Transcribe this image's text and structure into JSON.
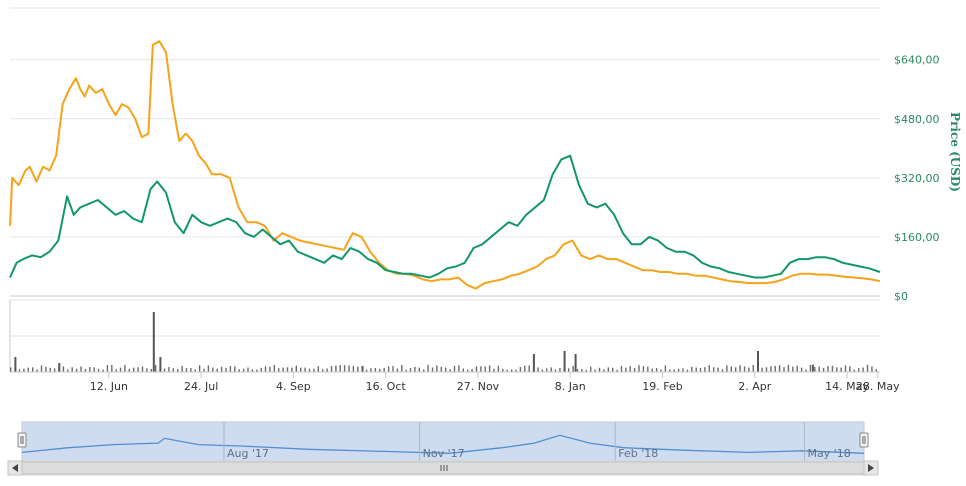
{
  "chart_data": {
    "type": "line",
    "ylabel": "Price (USD)",
    "y_ticks": [
      "$0",
      "$160,00",
      "$320,00",
      "$480,00",
      "$640,00"
    ],
    "y_tick_values": [
      0,
      160,
      320,
      480,
      640
    ],
    "ylim": [
      0,
      780
    ],
    "x_tick_labels": [
      "12. Jun",
      "24. Jul",
      "4. Sep",
      "16. Oct",
      "27. Nov",
      "8. Jan",
      "19. Feb",
      "2. Apr",
      "14. May",
      "28. May"
    ],
    "x_tick_dates": [
      "2017-06-12",
      "2017-07-24",
      "2017-09-04",
      "2017-10-16",
      "2017-11-27",
      "2018-01-08",
      "2018-02-19",
      "2018-04-02",
      "2018-05-14",
      "2018-05-28"
    ],
    "x_range": [
      "2017-04-28",
      "2018-05-29"
    ],
    "navigator_labels": [
      "Aug '17",
      "Nov '17",
      "Feb '18",
      "May '18"
    ],
    "navigator_label_dates": [
      "2017-08-01",
      "2017-11-01",
      "2018-02-01",
      "2018-05-01"
    ],
    "grid": true,
    "legend": "none",
    "series": [
      {
        "color": "#f5a31a",
        "points": [
          [
            "2017-04-28",
            190
          ],
          [
            "2017-04-29",
            320
          ],
          [
            "2017-05-02",
            300
          ],
          [
            "2017-05-05",
            340
          ],
          [
            "2017-05-07",
            350
          ],
          [
            "2017-05-10",
            310
          ],
          [
            "2017-05-13",
            350
          ],
          [
            "2017-05-16",
            340
          ],
          [
            "2017-05-19",
            380
          ],
          [
            "2017-05-22",
            520
          ],
          [
            "2017-05-25",
            560
          ],
          [
            "2017-05-28",
            590
          ],
          [
            "2017-05-30",
            560
          ],
          [
            "2017-06-01",
            540
          ],
          [
            "2017-06-03",
            570
          ],
          [
            "2017-06-06",
            550
          ],
          [
            "2017-06-09",
            560
          ],
          [
            "2017-06-12",
            520
          ],
          [
            "2017-06-15",
            490
          ],
          [
            "2017-06-18",
            520
          ],
          [
            "2017-06-21",
            510
          ],
          [
            "2017-06-24",
            480
          ],
          [
            "2017-06-27",
            430
          ],
          [
            "2017-06-30",
            440
          ],
          [
            "2017-07-02",
            680
          ],
          [
            "2017-07-05",
            690
          ],
          [
            "2017-07-08",
            660
          ],
          [
            "2017-07-11",
            520
          ],
          [
            "2017-07-14",
            420
          ],
          [
            "2017-07-17",
            440
          ],
          [
            "2017-07-20",
            420
          ],
          [
            "2017-07-23",
            380
          ],
          [
            "2017-07-26",
            360
          ],
          [
            "2017-07-29",
            330
          ],
          [
            "2017-08-02",
            330
          ],
          [
            "2017-08-06",
            320
          ],
          [
            "2017-08-10",
            240
          ],
          [
            "2017-08-14",
            200
          ],
          [
            "2017-08-18",
            200
          ],
          [
            "2017-08-22",
            190
          ],
          [
            "2017-08-26",
            150
          ],
          [
            "2017-08-30",
            170
          ],
          [
            "2017-09-03",
            160
          ],
          [
            "2017-09-07",
            150
          ],
          [
            "2017-09-11",
            145
          ],
          [
            "2017-09-15",
            140
          ],
          [
            "2017-09-19",
            135
          ],
          [
            "2017-09-23",
            130
          ],
          [
            "2017-09-27",
            125
          ],
          [
            "2017-10-01",
            170
          ],
          [
            "2017-10-05",
            160
          ],
          [
            "2017-10-09",
            120
          ],
          [
            "2017-10-13",
            90
          ],
          [
            "2017-10-17",
            70
          ],
          [
            "2017-10-21",
            60
          ],
          [
            "2017-10-25",
            60
          ],
          [
            "2017-10-29",
            55
          ],
          [
            "2017-11-02",
            45
          ],
          [
            "2017-11-06",
            40
          ],
          [
            "2017-11-10",
            45
          ],
          [
            "2017-11-14",
            45
          ],
          [
            "2017-11-18",
            50
          ],
          [
            "2017-11-22",
            30
          ],
          [
            "2017-11-26",
            20
          ],
          [
            "2017-11-30",
            35
          ],
          [
            "2017-12-04",
            40
          ],
          [
            "2017-12-08",
            45
          ],
          [
            "2017-12-12",
            55
          ],
          [
            "2017-12-16",
            60
          ],
          [
            "2017-12-20",
            70
          ],
          [
            "2017-12-24",
            80
          ],
          [
            "2017-12-28",
            100
          ],
          [
            "2018-01-01",
            110
          ],
          [
            "2018-01-05",
            140
          ],
          [
            "2018-01-09",
            150
          ],
          [
            "2018-01-13",
            110
          ],
          [
            "2018-01-17",
            100
          ],
          [
            "2018-01-21",
            110
          ],
          [
            "2018-01-25",
            100
          ],
          [
            "2018-01-29",
            100
          ],
          [
            "2018-02-02",
            90
          ],
          [
            "2018-02-06",
            80
          ],
          [
            "2018-02-10",
            70
          ],
          [
            "2018-02-14",
            70
          ],
          [
            "2018-02-18",
            65
          ],
          [
            "2018-02-22",
            65
          ],
          [
            "2018-02-26",
            60
          ],
          [
            "2018-03-02",
            60
          ],
          [
            "2018-03-06",
            55
          ],
          [
            "2018-03-10",
            55
          ],
          [
            "2018-03-14",
            50
          ],
          [
            "2018-03-18",
            45
          ],
          [
            "2018-03-22",
            40
          ],
          [
            "2018-03-26",
            38
          ],
          [
            "2018-03-30",
            35
          ],
          [
            "2018-04-03",
            35
          ],
          [
            "2018-04-07",
            35
          ],
          [
            "2018-04-11",
            38
          ],
          [
            "2018-04-15",
            45
          ],
          [
            "2018-04-19",
            55
          ],
          [
            "2018-04-23",
            60
          ],
          [
            "2018-04-27",
            60
          ],
          [
            "2018-05-01",
            58
          ],
          [
            "2018-05-05",
            58
          ],
          [
            "2018-05-09",
            55
          ],
          [
            "2018-05-13",
            52
          ],
          [
            "2018-05-17",
            50
          ],
          [
            "2018-05-21",
            48
          ],
          [
            "2018-05-25",
            45
          ],
          [
            "2018-05-29",
            40
          ]
        ]
      },
      {
        "color": "#14966b",
        "points": [
          [
            "2017-04-28",
            50
          ],
          [
            "2017-05-01",
            90
          ],
          [
            "2017-05-04",
            100
          ],
          [
            "2017-05-08",
            110
          ],
          [
            "2017-05-12",
            105
          ],
          [
            "2017-05-16",
            120
          ],
          [
            "2017-05-20",
            150
          ],
          [
            "2017-05-24",
            270
          ],
          [
            "2017-05-27",
            220
          ],
          [
            "2017-05-30",
            240
          ],
          [
            "2017-06-03",
            250
          ],
          [
            "2017-06-07",
            260
          ],
          [
            "2017-06-11",
            240
          ],
          [
            "2017-06-15",
            220
          ],
          [
            "2017-06-19",
            230
          ],
          [
            "2017-06-23",
            210
          ],
          [
            "2017-06-27",
            200
          ],
          [
            "2017-07-01",
            290
          ],
          [
            "2017-07-04",
            310
          ],
          [
            "2017-07-08",
            280
          ],
          [
            "2017-07-12",
            200
          ],
          [
            "2017-07-16",
            170
          ],
          [
            "2017-07-20",
            220
          ],
          [
            "2017-07-24",
            200
          ],
          [
            "2017-07-28",
            190
          ],
          [
            "2017-08-01",
            200
          ],
          [
            "2017-08-05",
            210
          ],
          [
            "2017-08-09",
            200
          ],
          [
            "2017-08-13",
            170
          ],
          [
            "2017-08-17",
            160
          ],
          [
            "2017-08-21",
            180
          ],
          [
            "2017-08-25",
            160
          ],
          [
            "2017-08-29",
            140
          ],
          [
            "2017-09-02",
            150
          ],
          [
            "2017-09-06",
            120
          ],
          [
            "2017-09-10",
            110
          ],
          [
            "2017-09-14",
            100
          ],
          [
            "2017-09-18",
            90
          ],
          [
            "2017-09-22",
            110
          ],
          [
            "2017-09-26",
            100
          ],
          [
            "2017-09-30",
            130
          ],
          [
            "2017-10-04",
            120
          ],
          [
            "2017-10-08",
            100
          ],
          [
            "2017-10-12",
            90
          ],
          [
            "2017-10-16",
            70
          ],
          [
            "2017-10-20",
            65
          ],
          [
            "2017-10-24",
            60
          ],
          [
            "2017-10-28",
            60
          ],
          [
            "2017-11-01",
            55
          ],
          [
            "2017-11-05",
            50
          ],
          [
            "2017-11-09",
            60
          ],
          [
            "2017-11-13",
            75
          ],
          [
            "2017-11-17",
            80
          ],
          [
            "2017-11-21",
            90
          ],
          [
            "2017-11-25",
            130
          ],
          [
            "2017-11-29",
            140
          ],
          [
            "2017-12-03",
            160
          ],
          [
            "2017-12-07",
            180
          ],
          [
            "2017-12-11",
            200
          ],
          [
            "2017-12-15",
            190
          ],
          [
            "2017-12-19",
            220
          ],
          [
            "2017-12-23",
            240
          ],
          [
            "2017-12-27",
            260
          ],
          [
            "2017-12-31",
            330
          ],
          [
            "2018-01-04",
            370
          ],
          [
            "2018-01-08",
            380
          ],
          [
            "2018-01-12",
            300
          ],
          [
            "2018-01-16",
            250
          ],
          [
            "2018-01-20",
            240
          ],
          [
            "2018-01-24",
            250
          ],
          [
            "2018-01-28",
            220
          ],
          [
            "2018-02-01",
            170
          ],
          [
            "2018-02-05",
            140
          ],
          [
            "2018-02-09",
            140
          ],
          [
            "2018-02-13",
            160
          ],
          [
            "2018-02-17",
            150
          ],
          [
            "2018-02-21",
            130
          ],
          [
            "2018-02-25",
            120
          ],
          [
            "2018-03-01",
            120
          ],
          [
            "2018-03-05",
            110
          ],
          [
            "2018-03-09",
            90
          ],
          [
            "2018-03-13",
            80
          ],
          [
            "2018-03-17",
            75
          ],
          [
            "2018-03-21",
            65
          ],
          [
            "2018-03-25",
            60
          ],
          [
            "2018-03-29",
            55
          ],
          [
            "2018-04-02",
            50
          ],
          [
            "2018-04-06",
            50
          ],
          [
            "2018-04-10",
            55
          ],
          [
            "2018-04-14",
            60
          ],
          [
            "2018-04-18",
            90
          ],
          [
            "2018-04-22",
            100
          ],
          [
            "2018-04-26",
            100
          ],
          [
            "2018-04-30",
            105
          ],
          [
            "2018-05-04",
            105
          ],
          [
            "2018-05-08",
            100
          ],
          [
            "2018-05-12",
            90
          ],
          [
            "2018-05-16",
            85
          ],
          [
            "2018-05-20",
            80
          ],
          [
            "2018-05-24",
            75
          ],
          [
            "2018-05-29",
            65
          ]
        ]
      }
    ],
    "volume_spikes": [
      [
        "2017-04-30",
        0.25
      ],
      [
        "2017-05-20",
        0.15
      ],
      [
        "2017-07-02",
        1.0
      ],
      [
        "2017-07-05",
        0.25
      ],
      [
        "2017-10-05",
        0.1
      ],
      [
        "2017-12-22",
        0.3
      ],
      [
        "2018-01-05",
        0.35
      ],
      [
        "2018-01-10",
        0.3
      ],
      [
        "2018-04-03",
        0.35
      ],
      [
        "2018-04-28",
        0.12
      ]
    ],
    "navigator_series": [
      [
        "2017-04-28",
        0.15
      ],
      [
        "2017-05-20",
        0.3
      ],
      [
        "2017-06-10",
        0.4
      ],
      [
        "2017-07-01",
        0.45
      ],
      [
        "2017-07-04",
        0.6
      ],
      [
        "2017-07-20",
        0.4
      ],
      [
        "2017-08-10",
        0.35
      ],
      [
        "2017-09-10",
        0.25
      ],
      [
        "2017-10-15",
        0.18
      ],
      [
        "2017-11-15",
        0.12
      ],
      [
        "2017-12-10",
        0.3
      ],
      [
        "2017-12-25",
        0.45
      ],
      [
        "2018-01-06",
        0.7
      ],
      [
        "2018-01-20",
        0.45
      ],
      [
        "2018-02-05",
        0.3
      ],
      [
        "2018-03-05",
        0.22
      ],
      [
        "2018-04-05",
        0.15
      ],
      [
        "2018-04-30",
        0.2
      ],
      [
        "2018-05-29",
        0.12
      ]
    ]
  }
}
